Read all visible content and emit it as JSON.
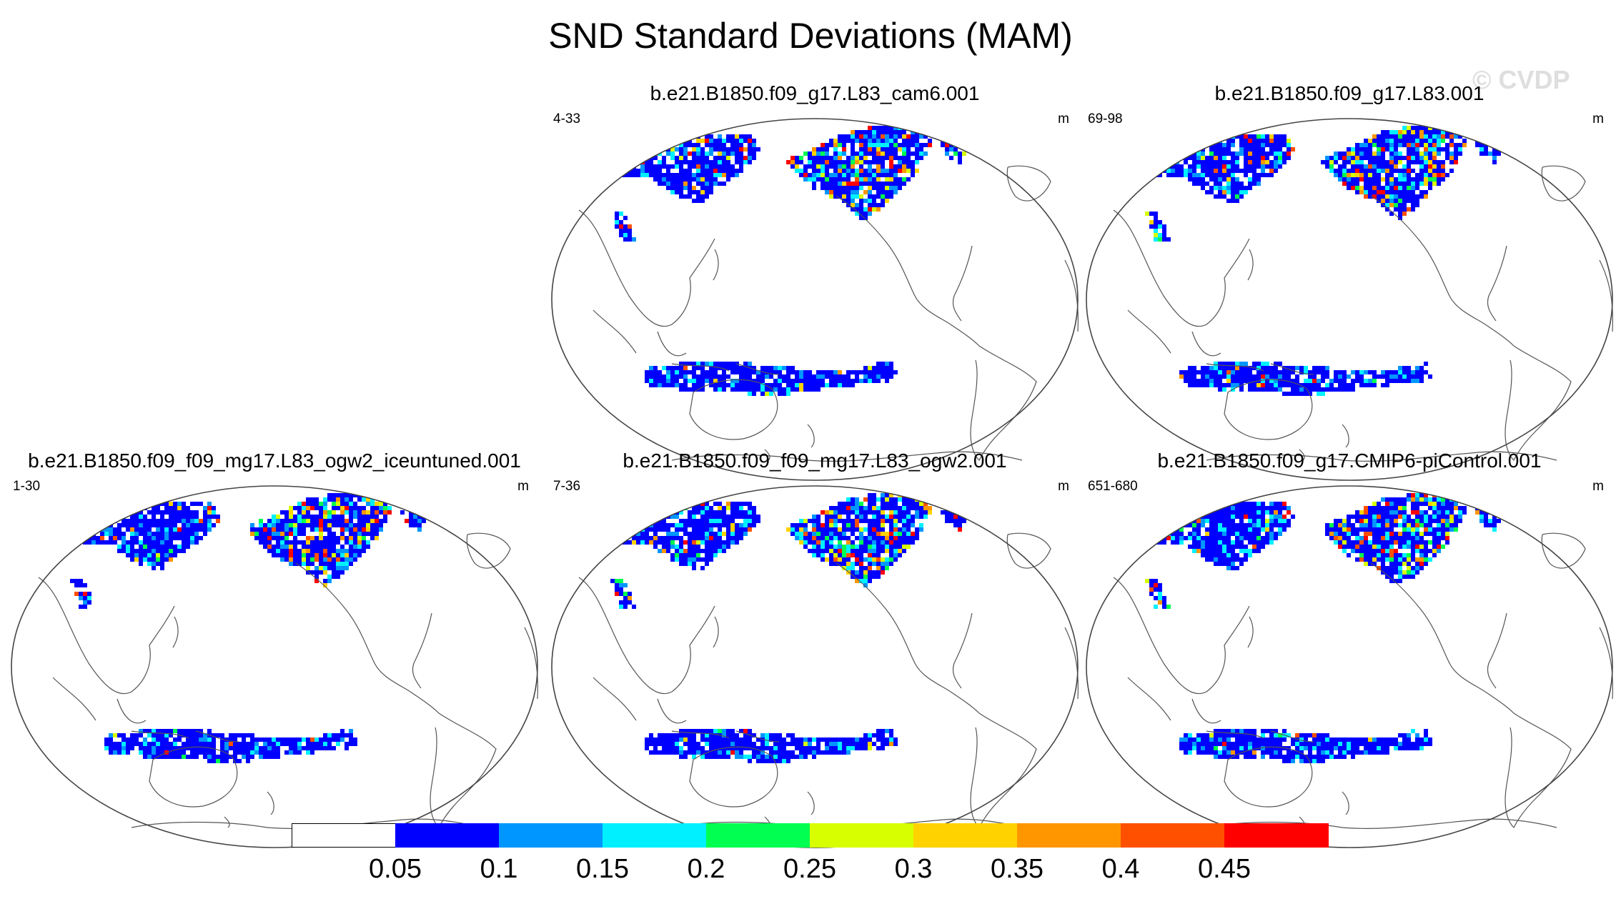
{
  "title": "SND Standard Deviations (MAM)",
  "watermark": "© CVDP",
  "panels": [
    {
      "title": "b.e21.B1850.f09_g17.L83_cam6.001",
      "years": "4-33",
      "units": "m",
      "variant": 0
    },
    {
      "title": "b.e21.B1850.f09_g17.L83.001",
      "years": "69-98",
      "units": "m",
      "variant": 1
    },
    {
      "title": "b.e21.B1850.f09_f09_mg17.L83_ogw2_iceuntuned.001",
      "years": "1-30",
      "units": "m",
      "variant": 2
    },
    {
      "title": "b.e21.B1850.f09_f09_mg17.L83_ogw2.001",
      "years": "7-36",
      "units": "m",
      "variant": 3
    },
    {
      "title": "b.e21.B1850.f09_g17.CMIP6-piControl.001",
      "years": "651-680",
      "units": "m",
      "variant": 4
    }
  ],
  "colorbar": {
    "labels": [
      "0.05",
      "0.1",
      "0.15",
      "0.2",
      "0.25",
      "0.3",
      "0.35",
      "0.4",
      "0.45"
    ],
    "colors": [
      "#ffffff",
      "#0000ff",
      "#0096ff",
      "#00f0ff",
      "#00ff50",
      "#d8ff00",
      "#ffd200",
      "#ff9600",
      "#ff5000",
      "#ff0000"
    ]
  }
}
